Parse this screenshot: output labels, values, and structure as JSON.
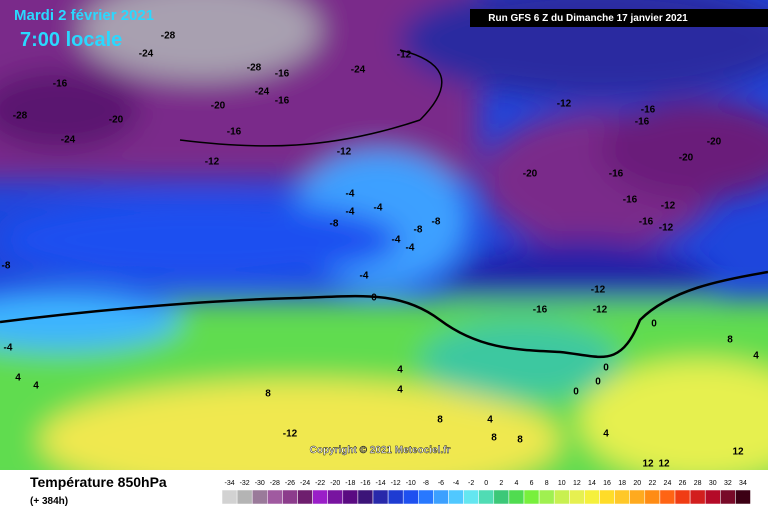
{
  "header": {
    "date": "Mardi 2 février 2021",
    "time": "7:00 locale",
    "run": "Run GFS 6 Z du Dimanche 17 janvier 2021"
  },
  "contour_labels": [
    -28,
    -24,
    -16,
    -28,
    -24,
    -20,
    -20,
    -16,
    -12,
    -28,
    -16,
    -24,
    -16,
    -24,
    -12,
    -12,
    -12,
    -16,
    -16,
    -20,
    -20,
    -20,
    -16,
    -16,
    -12,
    -16,
    -12,
    -4,
    -4,
    -4,
    -8,
    -8,
    -8,
    -4,
    -4,
    -4,
    -8,
    0,
    -12,
    -16,
    -12,
    0,
    -4,
    4,
    4,
    8,
    4,
    4,
    8,
    4,
    8,
    0,
    0,
    0,
    8,
    4,
    -12,
    4,
    12,
    12,
    12,
    8
  ],
  "copyright": "Copyright © 2021 Meteociel.fr",
  "footer": {
    "title": "Température 850hPa",
    "lead": "(+ 384h)"
  },
  "scale": {
    "values": [
      -34,
      -32,
      -30,
      -28,
      -26,
      -24,
      -22,
      -20,
      -18,
      -16,
      -14,
      -12,
      -10,
      -8,
      -6,
      -4,
      -2,
      0,
      2,
      4,
      6,
      8,
      10,
      12,
      14,
      16,
      18,
      20,
      22,
      24,
      26,
      28,
      30,
      32,
      34
    ],
    "colors": [
      "#d2d2d2",
      "#b4b4b4",
      "#9a7a9a",
      "#a05aa0",
      "#8c3c8c",
      "#6e1e6e",
      "#9a1ec8",
      "#7814a0",
      "#5a0a82",
      "#3c1478",
      "#2828aa",
      "#1e3cd2",
      "#1e50f0",
      "#2878ff",
      "#3ca0ff",
      "#50c8ff",
      "#64e6f0",
      "#50dcb4",
      "#3cc878",
      "#50dc50",
      "#78f03c",
      "#a0f050",
      "#c8f050",
      "#e6f050",
      "#f5f03c",
      "#ffdc28",
      "#ffc828",
      "#ffaa1e",
      "#ff8c14",
      "#ff6414",
      "#f03c14",
      "#d21e1e",
      "#b40a28",
      "#780a28",
      "#3c0014"
    ]
  }
}
